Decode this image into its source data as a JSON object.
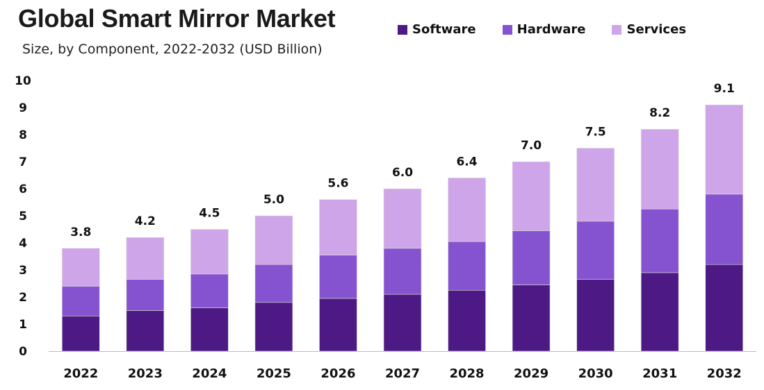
{
  "chart_data": {
    "type": "bar",
    "stacked": true,
    "title": "Global Smart Mirror Market",
    "subtitle": "Size, by Component, 2022-2032 (USD Billion)",
    "xlabel": "",
    "ylabel": "",
    "ylim": [
      0,
      10
    ],
    "yticks": [
      "0",
      "1",
      "2",
      "3",
      "4",
      "5",
      "6",
      "7",
      "8",
      "9",
      "10"
    ],
    "legend_position": "top-right",
    "grid": false,
    "categories": [
      "2022",
      "2023",
      "2024",
      "2025",
      "2026",
      "2027",
      "2028",
      "2029",
      "2030",
      "2031",
      "2032"
    ],
    "series": [
      {
        "name": "Software",
        "color": "#4d1a85",
        "values": [
          1.3,
          1.5,
          1.6,
          1.8,
          1.95,
          2.1,
          2.25,
          2.45,
          2.65,
          2.9,
          3.2
        ]
      },
      {
        "name": "Hardware",
        "color": "#8653d0",
        "values": [
          1.1,
          1.15,
          1.25,
          1.4,
          1.6,
          1.7,
          1.8,
          2.0,
          2.15,
          2.35,
          2.6
        ]
      },
      {
        "name": "Services",
        "color": "#cfa5ea",
        "values": [
          1.4,
          1.55,
          1.65,
          1.8,
          2.05,
          2.2,
          2.35,
          2.55,
          2.7,
          2.95,
          3.3
        ]
      }
    ],
    "totals": [
      "3.8",
      "4.2",
      "4.5",
      "5.0",
      "5.6",
      "6.0",
      "6.4",
      "7.0",
      "7.5",
      "8.2",
      "9.1"
    ]
  }
}
